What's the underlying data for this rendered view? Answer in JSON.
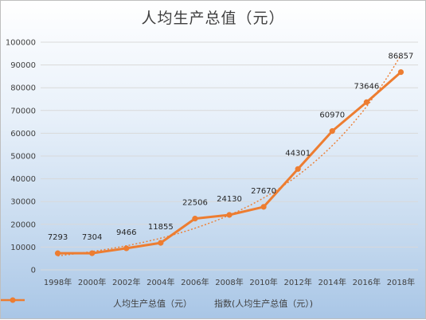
{
  "chart_data": {
    "type": "line",
    "title": "人均生产总值（元）",
    "categories": [
      "1998年",
      "2000年",
      "2002年",
      "2004年",
      "2006年",
      "2008年",
      "2010年",
      "2012年",
      "2014年",
      "2016年",
      "2018年"
    ],
    "series": [
      {
        "name": "人均生产总值（元）",
        "values": [
          7293,
          7304,
          9466,
          11855,
          22506,
          24130,
          27670,
          44301,
          60970,
          73646,
          86857
        ]
      }
    ],
    "trendline": {
      "name": "指数(人均生产总值（元）)",
      "type": "exponential"
    },
    "ylim": [
      0,
      100000
    ],
    "yticks": [
      0,
      10000,
      20000,
      30000,
      40000,
      50000,
      60000,
      70000,
      80000,
      90000,
      100000
    ],
    "grid": true,
    "legend": "bottom",
    "colors": {
      "series": "#ed7d31",
      "trend": "#ed7d31"
    }
  }
}
